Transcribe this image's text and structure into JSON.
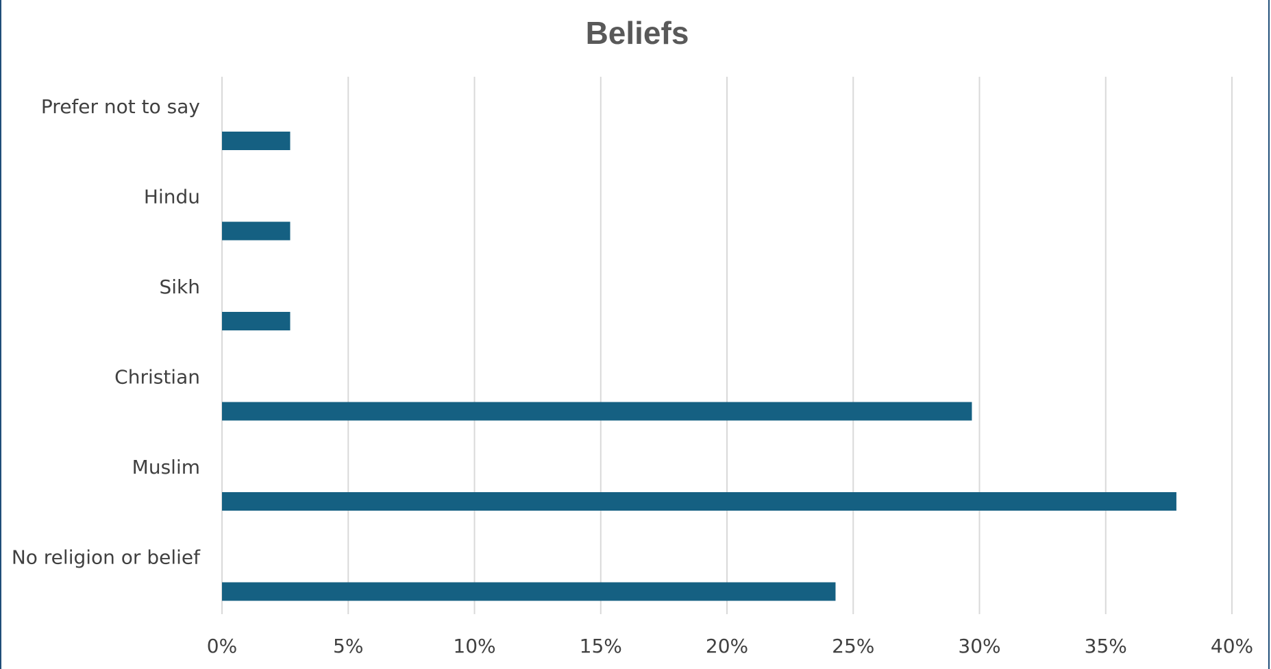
{
  "chart_data": {
    "type": "bar",
    "orientation": "horizontal",
    "title": "Beliefs",
    "xlabel": "",
    "ylabel": "",
    "categories": [
      "Prefer not to say",
      "Hindu",
      "Sikh",
      "Christian",
      "Muslim",
      "No religion or belief"
    ],
    "values": [
      2.7,
      2.7,
      2.7,
      29.7,
      37.8,
      24.3
    ],
    "value_unit": "%",
    "xlim": [
      0,
      40
    ],
    "ticks": [
      "0%",
      "5%",
      "10%",
      "15%",
      "20%",
      "25%",
      "30%",
      "35%",
      "40%"
    ],
    "tick_values": [
      0,
      5,
      10,
      15,
      20,
      25,
      30,
      35,
      40
    ],
    "grid": true,
    "legend": "none",
    "bar_color": "#156082",
    "grid_color": "#d9d9d9",
    "frame_color": "#1f4e79"
  }
}
